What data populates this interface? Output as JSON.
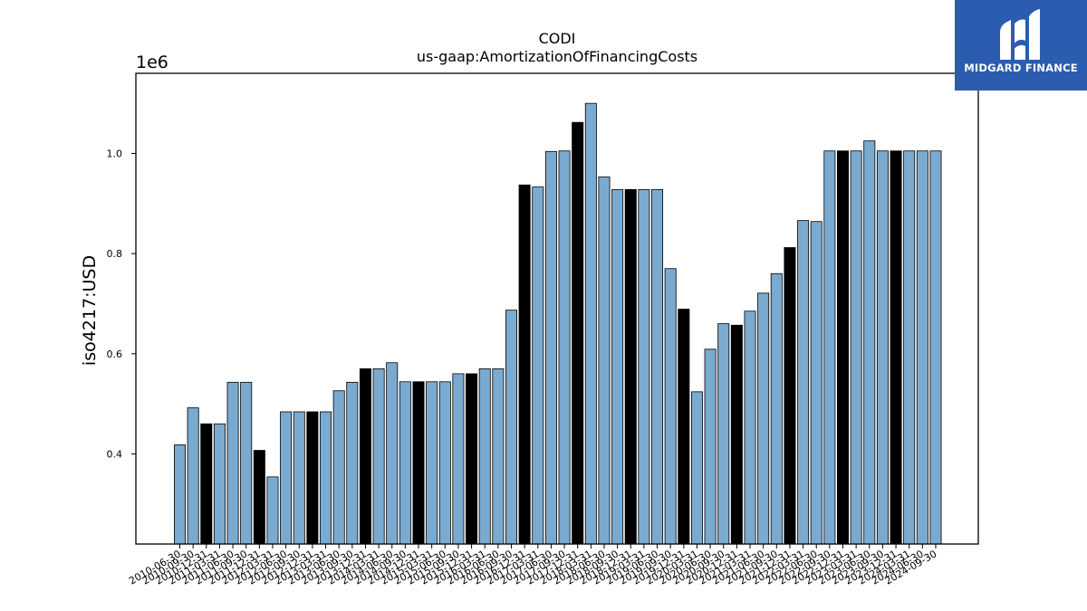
{
  "chart_data": {
    "type": "bar",
    "title": "CODI",
    "subtitle": "us-gaap:AmortizationOfFinancingCosts",
    "ylabel": "iso4217:USD",
    "xlabel": "",
    "y_offset_label": "1e6",
    "ylim": [
      220000,
      1160000
    ],
    "yticks": [
      400000,
      600000,
      800000,
      1000000
    ],
    "ytick_labels": [
      "0.4",
      "0.6",
      "0.8",
      "1.0"
    ],
    "grid": false,
    "colors": {
      "bar": "#7aaad0",
      "highlight": "#000000",
      "edge": "#000000"
    },
    "categories": [
      "2010-06-30",
      "2010-09-30",
      "2010-12-31",
      "2011-03-31",
      "2011-06-30",
      "2011-09-30",
      "2011-12-31",
      "2012-03-31",
      "2012-06-30",
      "2012-09-30",
      "2012-12-31",
      "2013-03-31",
      "2013-06-30",
      "2013-09-30",
      "2013-12-31",
      "2014-03-31",
      "2014-06-30",
      "2014-09-30",
      "2014-12-31",
      "2015-03-31",
      "2015-06-30",
      "2015-09-30",
      "2015-12-31",
      "2016-03-31",
      "2016-06-30",
      "2016-09-30",
      "2016-12-31",
      "2017-03-31",
      "2017-06-30",
      "2017-09-30",
      "2017-12-31",
      "2018-03-31",
      "2018-06-30",
      "2018-09-30",
      "2018-12-31",
      "2019-03-31",
      "2019-06-30",
      "2019-09-30",
      "2019-12-31",
      "2020-03-31",
      "2020-06-30",
      "2020-09-30",
      "2020-12-31",
      "2021-03-31",
      "2021-06-30",
      "2021-09-30",
      "2021-12-31",
      "2022-03-31",
      "2022-06-30",
      "2022-09-30",
      "2022-12-31",
      "2023-03-31",
      "2023-06-30",
      "2023-09-30",
      "2023-12-31",
      "2024-03-31",
      "2024-06-30",
      "2024-09-30"
    ],
    "values": [
      418000,
      492000,
      460000,
      460000,
      543000,
      543000,
      407000,
      354000,
      484000,
      484000,
      484000,
      484000,
      526000,
      543000,
      570000,
      570000,
      582000,
      544000,
      544000,
      544000,
      544000,
      560000,
      560000,
      570000,
      570000,
      687000,
      937000,
      933000,
      1004000,
      1005000,
      1062000,
      1100000,
      953000,
      928000,
      928000,
      928000,
      928000,
      770000,
      689000,
      524000,
      609000,
      660000,
      657000,
      685000,
      721000,
      760000,
      812000,
      866000,
      864000,
      1005000,
      1005000,
      1005000,
      1025000,
      1005000,
      1005000,
      1005000,
      1005000,
      1005000
    ],
    "highlight": [
      false,
      false,
      true,
      false,
      false,
      false,
      true,
      false,
      false,
      false,
      true,
      false,
      false,
      false,
      true,
      false,
      false,
      false,
      true,
      false,
      false,
      false,
      true,
      false,
      false,
      false,
      true,
      false,
      false,
      false,
      true,
      false,
      false,
      false,
      true,
      false,
      false,
      false,
      true,
      false,
      false,
      false,
      true,
      false,
      false,
      false,
      true,
      false,
      false,
      false,
      true,
      false,
      false,
      false,
      true,
      false,
      false,
      false
    ]
  },
  "logo": {
    "text": "MIDGARD FINANCE",
    "icon": "midgard-logo-icon",
    "background": "#2b5caf"
  }
}
